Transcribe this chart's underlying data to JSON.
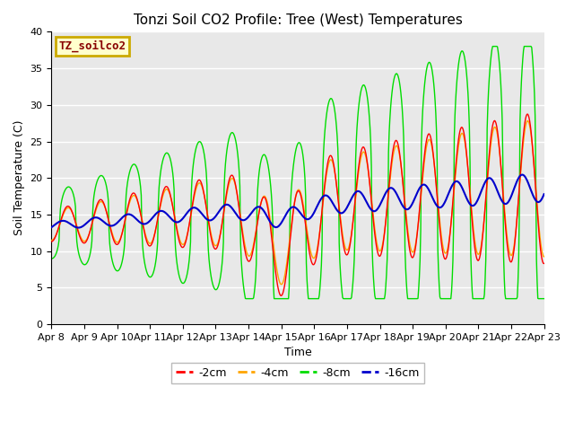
{
  "title": "Tonzi Soil CO2 Profile: Tree (West) Temperatures",
  "xlabel": "Time",
  "ylabel": "Soil Temperature (C)",
  "ylim": [
    0,
    40
  ],
  "colors": {
    "-2cm": "#ff0000",
    "-4cm": "#ffa500",
    "-8cm": "#00dd00",
    "-16cm": "#0000cc"
  },
  "legend_label": "TZ_soilco2",
  "legend_bg": "#ffffcc",
  "legend_border": "#ccaa00",
  "bg_color": "#e8e8e8",
  "title_fontsize": 11,
  "axis_fontsize": 9,
  "tick_fontsize": 8,
  "legend_fontsize": 9,
  "x_tick_labels": [
    "Apr 8",
    "Apr 9",
    "Apr 10",
    "Apr 11",
    "Apr 12",
    "Apr 13",
    "Apr 14",
    "Apr 15",
    "Apr 16",
    "Apr 17",
    "Apr 18",
    "Apr 19",
    "Apr 20",
    "Apr 21",
    "Apr 22",
    "Apr 23"
  ]
}
